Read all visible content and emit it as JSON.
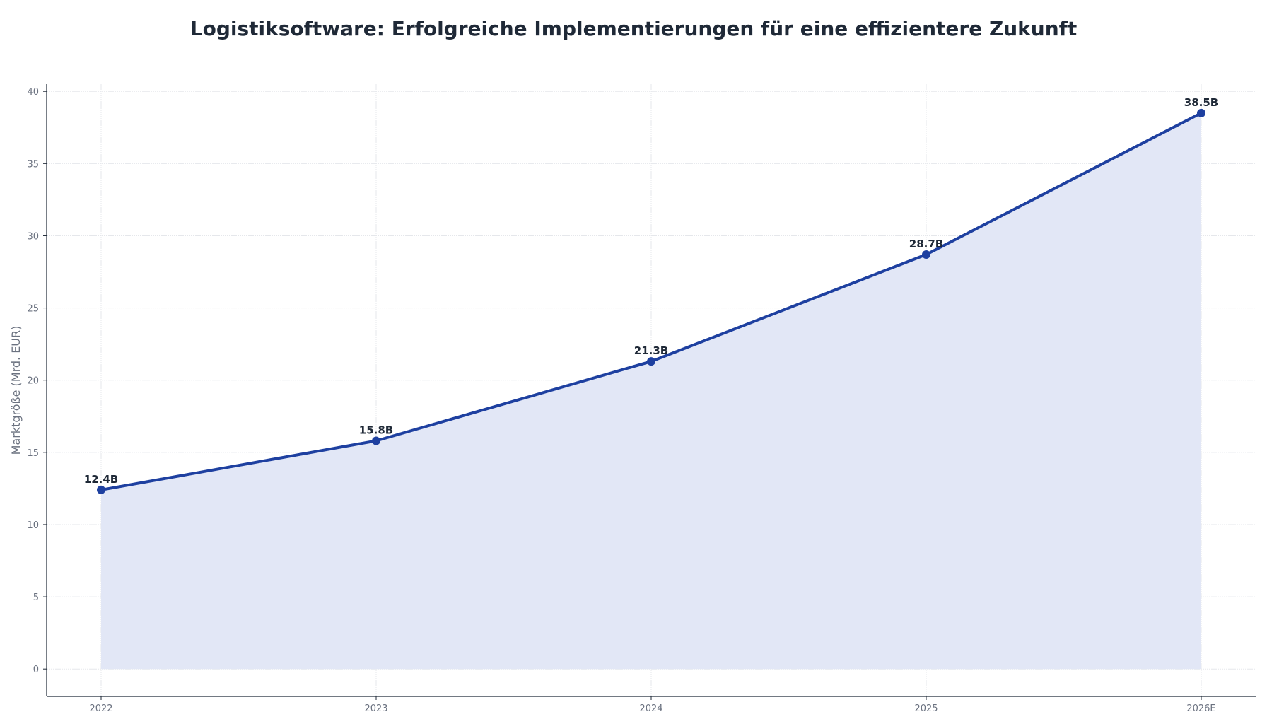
{
  "chart_data": {
    "type": "area",
    "title": "Logistiksoftware: Erfolgreiche Implementierungen für eine effizientere Zukunft",
    "xlabel": "",
    "ylabel": "Marktgröße (Mrd. EUR)",
    "categories": [
      "2022",
      "2023",
      "2024",
      "2025",
      "2026E"
    ],
    "series": [
      {
        "values": [
          12.4,
          15.8,
          21.3,
          28.7,
          38.5
        ],
        "labels": [
          "12.4B",
          "15.8B",
          "21.3B",
          "28.7B",
          "38.5B"
        ]
      }
    ],
    "ylim": [
      -1.9,
      40.5
    ],
    "yticks": [
      0,
      5,
      10,
      15,
      20,
      25,
      30,
      35,
      40
    ],
    "grid": true,
    "legend": "none",
    "colors": {
      "line": "#1e40a0",
      "fill": "#e2e7f6",
      "grid": "#e5e7eb",
      "axis": "#1f2937",
      "text": "#1f2937",
      "tick": "#6b7280"
    }
  }
}
